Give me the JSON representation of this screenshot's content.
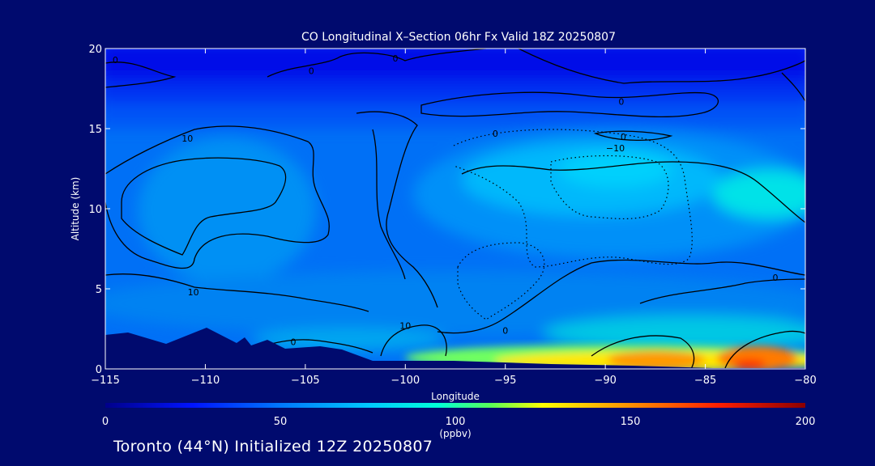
{
  "chart_data": {
    "type": "heatmap",
    "title": "CO Longitudinal X–Section 06hr  Fx Valid 18Z 20250807",
    "xlabel": "Longitude",
    "ylabel": "Altitude (km)",
    "xlim": [
      -115,
      -80
    ],
    "ylim": [
      0,
      20
    ],
    "x_ticks": [
      -115,
      -110,
      -105,
      -100,
      -95,
      -90,
      -85,
      -80
    ],
    "x_tick_labels": [
      "−115",
      "−110",
      "−105",
      "−100",
      "−95",
      "−90",
      "−85",
      "−80"
    ],
    "y_ticks": [
      0,
      5,
      10,
      15,
      20
    ],
    "y_tick_labels": [
      "0",
      "5",
      "10",
      "15",
      "20"
    ],
    "colorbar": {
      "min": 0,
      "max": 200,
      "ticks": [
        0,
        50,
        100,
        150,
        200
      ],
      "tick_labels": [
        "0",
        "50",
        "100",
        "150",
        "200"
      ],
      "unit": "(ppbv)",
      "stops": [
        {
          "v": 0,
          "c": "#00008a"
        },
        {
          "v": 25,
          "c": "#0014ff"
        },
        {
          "v": 50,
          "c": "#0078ff"
        },
        {
          "v": 75,
          "c": "#00c8ff"
        },
        {
          "v": 95,
          "c": "#00ffd8"
        },
        {
          "v": 110,
          "c": "#58ff58"
        },
        {
          "v": 125,
          "c": "#ffff00"
        },
        {
          "v": 150,
          "c": "#ff9000"
        },
        {
          "v": 175,
          "c": "#ff1e00"
        },
        {
          "v": 200,
          "c": "#8a0000"
        }
      ]
    },
    "contour_labels": [
      {
        "text": "0",
        "x": -114.5,
        "y": 19.3
      },
      {
        "text": "0",
        "x": -104.7,
        "y": 18.6
      },
      {
        "text": "0",
        "x": -100.5,
        "y": 19.4
      },
      {
        "text": "0",
        "x": -89.2,
        "y": 16.7
      },
      {
        "text": "0",
        "x": -89.1,
        "y": 14.5
      },
      {
        "text": "10",
        "x": -110.9,
        "y": 14.4
      },
      {
        "text": "0",
        "x": -95.5,
        "y": 14.7
      },
      {
        "text": "−10",
        "x": -89.5,
        "y": 13.8
      },
      {
        "text": "10",
        "x": -110.6,
        "y": 4.8
      },
      {
        "text": "0",
        "x": -81.5,
        "y": 5.7
      },
      {
        "text": "10",
        "x": -100.0,
        "y": 2.7
      },
      {
        "text": "0",
        "x": -95.0,
        "y": 2.4
      },
      {
        "text": "0",
        "x": -105.6,
        "y": 1.7
      }
    ]
  },
  "footer": "Toronto (44°N) Initialized 12Z 20250807"
}
